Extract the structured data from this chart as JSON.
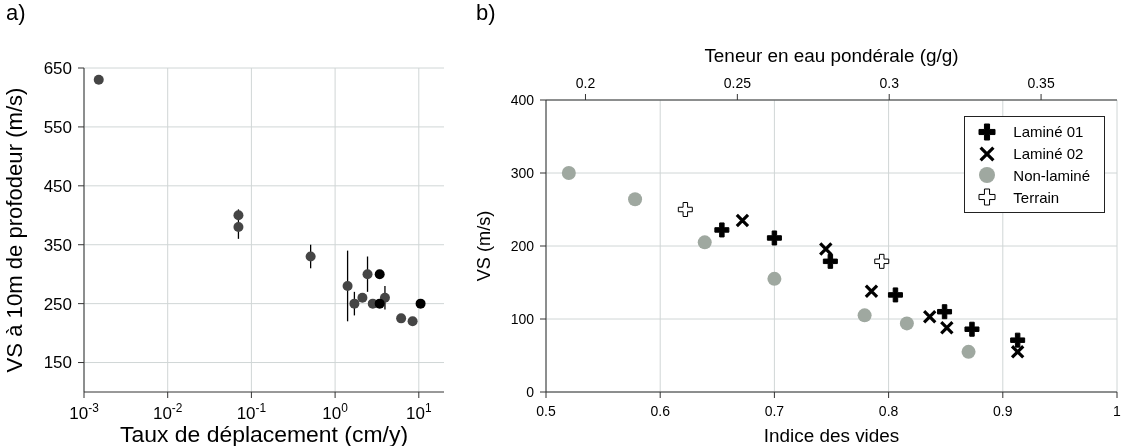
{
  "chart_data": [
    {
      "type": "scatter",
      "title": "a)",
      "xlabel": "Taux de déplacement (cm/y)",
      "ylabel": "VS à 10m de profodeur (m/s)",
      "log": "x",
      "xlim": [
        0.001,
        20
      ],
      "xticks": [
        {
          "value": 0.001,
          "label": "10$^{-3}$"
        },
        {
          "value": 0.01,
          "label": "10$^{-2}$"
        },
        {
          "value": 0.1,
          "label": "10$^{-1}$"
        },
        {
          "value": 1,
          "label": "10$^{0}$"
        },
        {
          "value": 10,
          "label": "10$^{1}$"
        }
      ],
      "ylim": [
        100,
        650
      ],
      "yticks": [
        150,
        250,
        350,
        450,
        550,
        650
      ],
      "grid": true,
      "marker": "circle",
      "series": [
        {
          "color": "#454545",
          "x": [
            0.0015,
            0.07,
            0.07,
            0.51,
            1.41,
            1.7,
            2.12,
            2.44,
            2.82,
            3.94,
            6.15,
            8.43
          ],
          "values": [
            630,
            400,
            380,
            330,
            280,
            250,
            260,
            300,
            250,
            260,
            225,
            220
          ],
          "errors": [
            null,
            null,
            [
              360,
              410
            ],
            [
              310,
              350
            ],
            [
              220,
              340
            ],
            [
              230,
              270
            ],
            null,
            [
              270,
              330
            ],
            null,
            [
              240,
              280
            ],
            null,
            null
          ]
        },
        {
          "color": "#000000",
          "x": [
            3.41,
            3.41,
            10.5
          ],
          "values": [
            300,
            250,
            250
          ]
        }
      ]
    },
    {
      "type": "scatter",
      "title": "b)",
      "xlabel": "Indice des vides",
      "ylabel": "VS (m/s)",
      "x2label": "Teneur en eau pondérale (g/g)",
      "xlim": [
        0.5,
        1.0
      ],
      "xticks": [
        0.5,
        0.6,
        0.7,
        0.8,
        0.9,
        1
      ],
      "x2lim": [
        0.187,
        0.375
      ],
      "x2ticks": [
        0.2,
        0.25,
        0.3,
        0.35
      ],
      "ylim": [
        0,
        400
      ],
      "yticks": [
        0,
        100,
        200,
        300,
        400
      ],
      "grid": true,
      "legend": "top right",
      "series": [
        {
          "name": "Laminé 01",
          "color": "#000000",
          "marker": "plus",
          "x": [
            0.654,
            0.7,
            0.749,
            0.806,
            0.849,
            0.873,
            0.913
          ],
          "values": [
            222,
            211,
            179,
            133,
            110,
            86,
            71
          ]
        },
        {
          "name": "Laminé 02",
          "color": "#000000",
          "marker": "cross",
          "x": [
            0.672,
            0.745,
            0.785,
            0.836,
            0.851,
            0.913
          ],
          "values": [
            235,
            196,
            138,
            103,
            88,
            55
          ]
        },
        {
          "name": "Non-laminé",
          "color": "#9fa8a0",
          "marker": "circle",
          "x": [
            0.52,
            0.578,
            0.639,
            0.7,
            0.779,
            0.816,
            0.87
          ],
          "values": [
            300,
            264,
            205,
            155,
            105,
            94,
            55
          ]
        },
        {
          "name": "Terrain",
          "color": "#ffffff",
          "marker": "plus",
          "x": [
            0.622,
            0.794
          ],
          "values": [
            250,
            179
          ]
        }
      ]
    }
  ]
}
